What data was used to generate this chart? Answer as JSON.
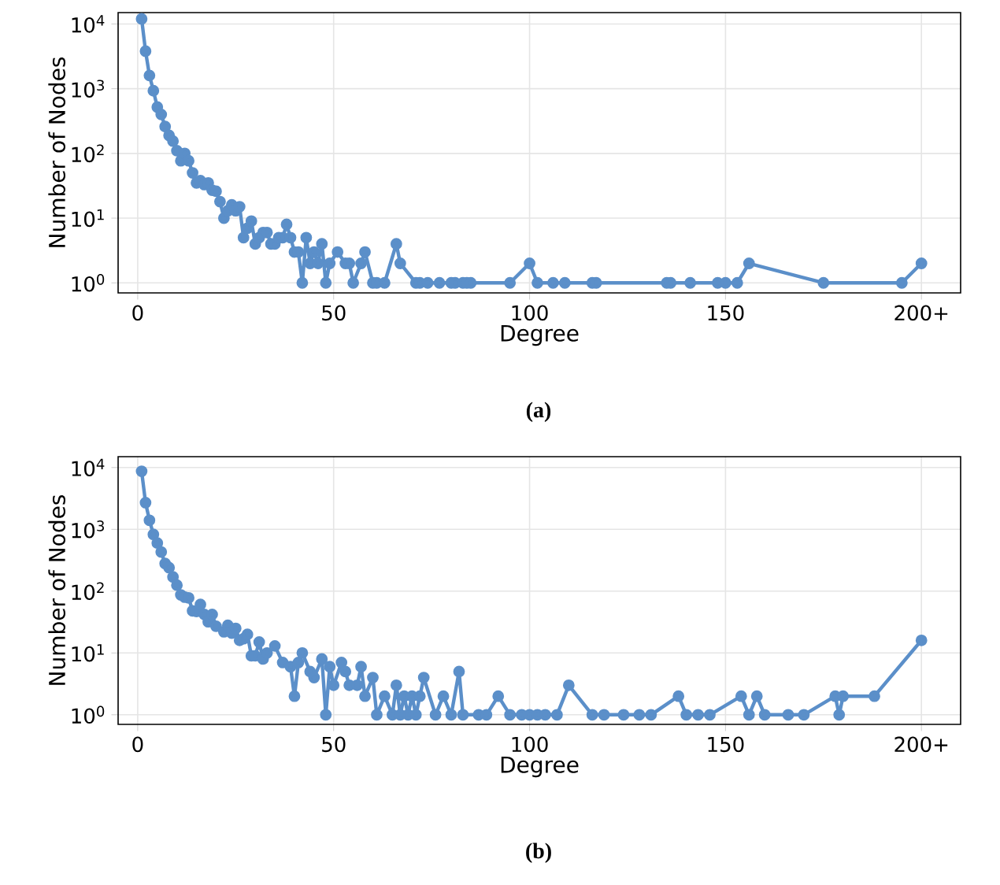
{
  "chart_data": [
    {
      "type": "line",
      "title": "(a)",
      "xlabel": "Degree",
      "ylabel": "Number of Nodes",
      "color": "#5b8fc9",
      "log": "y",
      "grid": true,
      "marker": "circle",
      "line_style": "solid",
      "x": [
        1,
        2,
        3,
        4,
        5,
        6,
        7,
        8,
        9,
        10,
        11,
        12,
        13,
        14,
        15,
        16,
        17,
        18,
        19,
        20,
        21,
        22,
        23,
        24,
        25,
        26,
        27,
        28,
        29,
        30,
        31,
        32,
        33,
        34,
        35,
        36,
        37,
        38,
        39,
        40,
        41,
        42,
        43,
        44,
        45,
        46,
        47,
        48,
        49,
        51,
        53,
        54,
        55,
        57,
        58,
        60,
        61,
        63,
        66,
        67,
        71,
        72,
        74,
        77,
        80,
        81,
        83,
        84,
        85,
        95,
        100,
        102,
        106,
        109,
        116,
        117,
        135,
        136,
        141,
        148,
        150,
        153,
        156,
        175,
        195,
        200
      ],
      "values": [
        12000,
        3800,
        1600,
        930,
        520,
        400,
        260,
        190,
        155,
        110,
        77,
        100,
        77,
        50,
        35,
        38,
        33,
        35,
        27,
        26,
        18,
        10,
        13,
        16,
        13,
        15,
        5,
        7,
        9,
        4,
        5,
        6,
        6,
        4,
        4,
        5,
        5,
        8,
        5,
        3,
        3,
        1,
        5,
        2,
        3,
        2,
        4,
        1,
        2,
        3,
        2,
        2,
        1,
        2,
        3,
        1,
        1,
        1,
        4,
        2,
        1,
        1,
        1,
        1,
        1,
        1,
        1,
        1,
        1,
        1,
        2,
        1,
        1,
        1,
        1,
        1,
        1,
        1,
        1,
        1,
        1,
        1,
        2,
        1,
        1,
        2
      ],
      "xlim": [
        -5,
        210
      ],
      "ylim": [
        0.7,
        15000
      ],
      "xticks": [
        0,
        50,
        100,
        150,
        {
          "value": 200,
          "label": "200+"
        }
      ],
      "yticks": [
        {
          "value": 1,
          "label": "10$^{0}$"
        },
        {
          "value": 10,
          "label": "10$^{1}$"
        },
        {
          "value": 100,
          "label": "10$^{2}$"
        },
        {
          "value": 1000,
          "label": "10$^{3}$"
        },
        {
          "value": 10000,
          "label": "10$^{4}$"
        }
      ]
    },
    {
      "type": "line",
      "title": "(b)",
      "xlabel": "Degree",
      "ylabel": "Number of Nodes",
      "color": "#5b8fc9",
      "log": "y",
      "grid": true,
      "marker": "circle",
      "line_style": "solid",
      "x": [
        1,
        2,
        3,
        4,
        5,
        6,
        7,
        8,
        9,
        10,
        11,
        12,
        13,
        14,
        15,
        16,
        17,
        18,
        19,
        20,
        22,
        23,
        24,
        25,
        26,
        27,
        28,
        29,
        30,
        31,
        32,
        33,
        35,
        37,
        39,
        40,
        41,
        42,
        44,
        45,
        47,
        48,
        49,
        50,
        52,
        53,
        54,
        56,
        57,
        58,
        60,
        61,
        63,
        65,
        66,
        67,
        68,
        69,
        70,
        71,
        72,
        73,
        76,
        78,
        80,
        82,
        83,
        87,
        89,
        92,
        95,
        98,
        100,
        102,
        104,
        107,
        110,
        116,
        119,
        124,
        128,
        131,
        138,
        140,
        143,
        146,
        154,
        156,
        158,
        160,
        166,
        170,
        178,
        179,
        180,
        188,
        200
      ],
      "values": [
        8700,
        2700,
        1400,
        830,
        600,
        430,
        280,
        240,
        170,
        125,
        87,
        80,
        78,
        48,
        47,
        61,
        42,
        32,
        42,
        27,
        22,
        28,
        21,
        25,
        16,
        17,
        20,
        9,
        9,
        15,
        8,
        10,
        13,
        7,
        6,
        2,
        7,
        10,
        5,
        4,
        8,
        1,
        6,
        3,
        7,
        5,
        3,
        3,
        6,
        2,
        4,
        1,
        2,
        1,
        3,
        1,
        2,
        1,
        2,
        1,
        2,
        4,
        1,
        2,
        1,
        5,
        1,
        1,
        1,
        2,
        1,
        1,
        1,
        1,
        1,
        1,
        3,
        1,
        1,
        1,
        1,
        1,
        2,
        1,
        1,
        1,
        2,
        1,
        2,
        1,
        1,
        1,
        2,
        1,
        2,
        2,
        16
      ],
      "xlim": [
        -5,
        210
      ],
      "ylim": [
        0.7,
        15000
      ],
      "xticks": [
        0,
        50,
        100,
        150,
        {
          "value": 200,
          "label": "200+"
        }
      ],
      "yticks": [
        {
          "value": 1,
          "label": "10$^{0}$"
        },
        {
          "value": 10,
          "label": "10$^{1}$"
        },
        {
          "value": 100,
          "label": "10$^{2}$"
        },
        {
          "value": 1000,
          "label": "10$^{3}$"
        },
        {
          "value": 10000,
          "label": "10$^{4}$"
        }
      ]
    }
  ]
}
